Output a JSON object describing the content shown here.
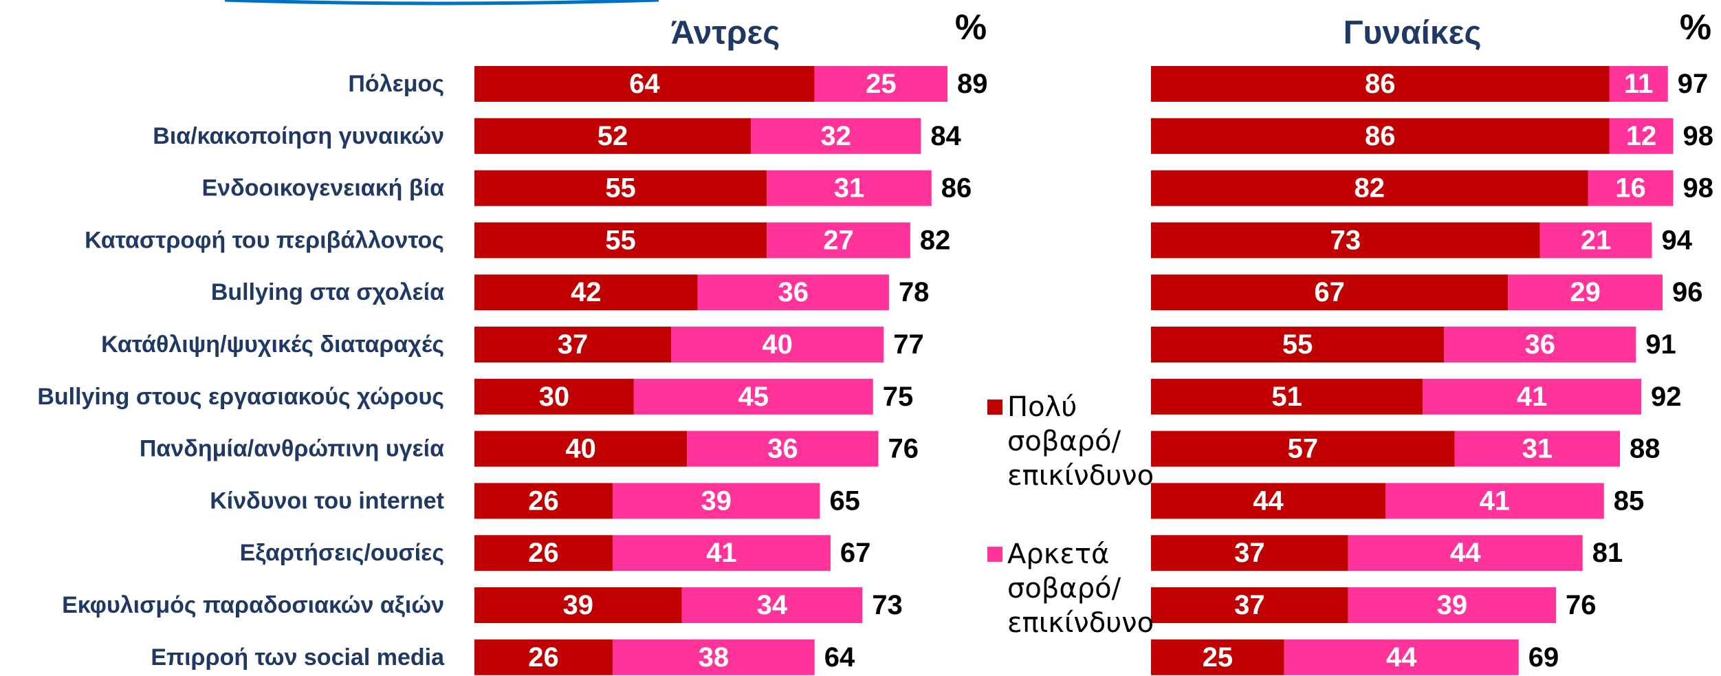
{
  "chart_data": {
    "type": "bar",
    "orientation": "horizontal",
    "stacked": true,
    "categories": [
      "Πόλεμος",
      "Βια/κακοποίηση γυναικών",
      "Ενδοοικογενειακή βία",
      "Καταστροφή του περιβάλλοντος",
      "Bullying στα σχολεία",
      "Κατάθλιψη/ψυχικές διαταραχές",
      "Bullying στους εργασιακούς χώρους",
      "Πανδημία/ανθρώπινη υγεία",
      "Κίνδυνοι του internet",
      "Εξαρτήσεις/ουσίες",
      "Εκφυλισμός παραδοσιακών αξιών",
      "Επιρροή των social media"
    ],
    "legend": [
      {
        "name": "Πολύ σοβαρό/ επικίνδυνο",
        "color": "#c00000"
      },
      {
        "name": "Αρκετά σοβαρό/ επικίνδυνο",
        "color": "#ff3399"
      }
    ],
    "panels": [
      {
        "title": "Άντρες",
        "unit": "%",
        "series": [
          {
            "values": [
              64,
              52,
              55,
              55,
              42,
              37,
              30,
              40,
              26,
              26,
              39,
              26
            ]
          },
          {
            "values": [
              25,
              32,
              31,
              27,
              36,
              40,
              45,
              36,
              39,
              41,
              34,
              38
            ]
          }
        ],
        "totals": [
          89,
          84,
          86,
          82,
          78,
          77,
          75,
          76,
          65,
          67,
          73,
          64
        ]
      },
      {
        "title": "Γυναίκες",
        "unit": "%",
        "series": [
          {
            "values": [
              86,
              86,
              82,
              73,
              67,
              55,
              51,
              57,
              44,
              37,
              37,
              25
            ]
          },
          {
            "values": [
              11,
              12,
              16,
              21,
              29,
              36,
              41,
              31,
              41,
              44,
              39,
              44
            ]
          }
        ],
        "totals": [
          97,
          98,
          98,
          94,
          96,
          91,
          92,
          88,
          85,
          81,
          76,
          69
        ]
      }
    ]
  }
}
